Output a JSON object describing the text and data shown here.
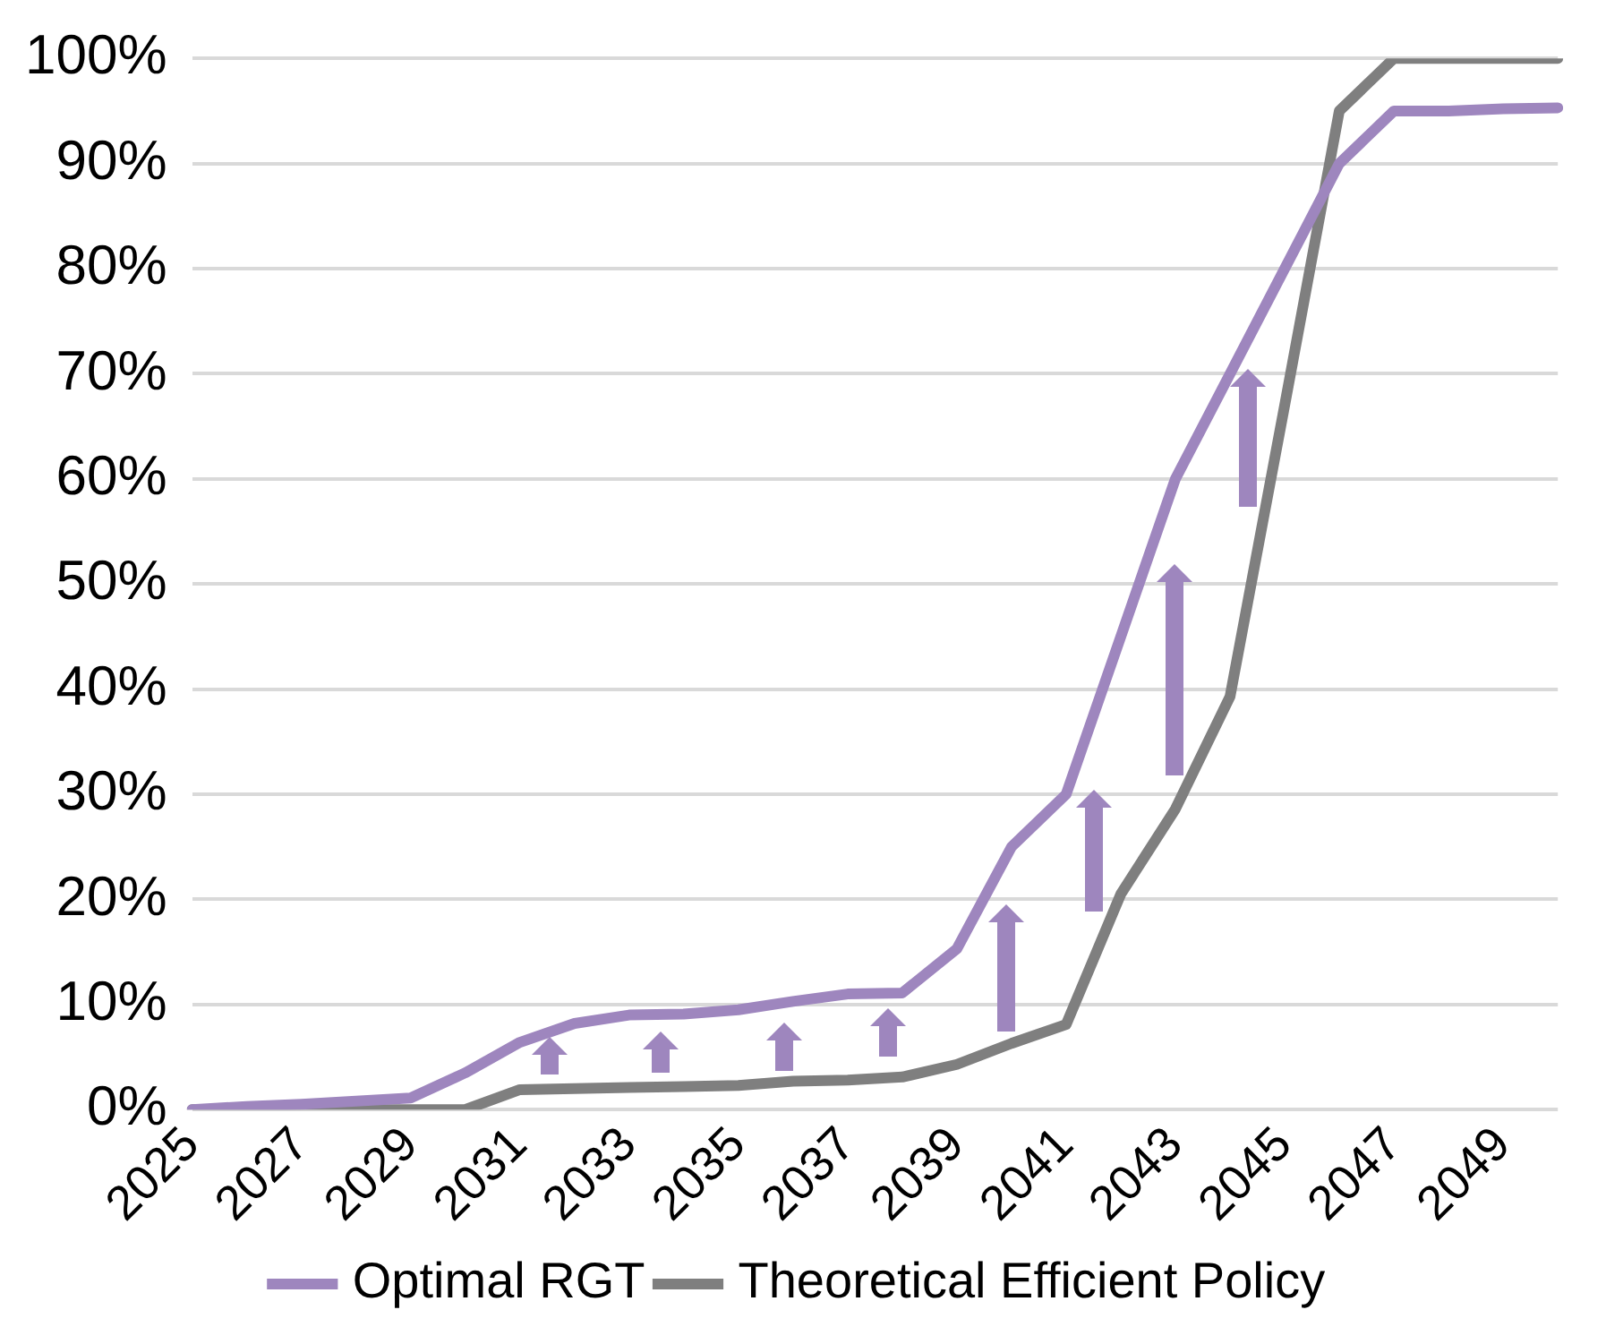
{
  "chart_data": {
    "type": "line",
    "categories": [
      "2025",
      null,
      "2027",
      null,
      "2029",
      null,
      "2031",
      null,
      "2033",
      null,
      "2035",
      null,
      "2037",
      null,
      "2039",
      null,
      "2041",
      null,
      "2043",
      null,
      "2045",
      null,
      "2047",
      null,
      "2049",
      null
    ],
    "series": [
      {
        "name": "Optimal RGT",
        "color": "#9e86be",
        "values": [
          0,
          0.3,
          0.5,
          0.8,
          1.1,
          3.5,
          6.4,
          8.2,
          9,
          9.1,
          9.5,
          10.3,
          11,
          11.1,
          15.3,
          25,
          30,
          45,
          60,
          70,
          80,
          90,
          95,
          95,
          95.2,
          95.3
        ]
      },
      {
        "name": "Theoretical Efficient Policy",
        "color": "#7f7f7f",
        "values": [
          0,
          0,
          0,
          0,
          0,
          0,
          1.9,
          2,
          2.1,
          2.2,
          2.3,
          2.7,
          2.8,
          3.1,
          4.3,
          6.3,
          8.1,
          20.5,
          28.6,
          39.3,
          67,
          95,
          100,
          100,
          100,
          100
        ]
      }
    ],
    "ylim": [
      0,
      100
    ],
    "yticks": [
      {
        "value": 0,
        "label": "0%"
      },
      {
        "value": 10,
        "label": "10%"
      },
      {
        "value": 20,
        "label": "20%"
      },
      {
        "value": 30,
        "label": "30%"
      },
      {
        "value": 40,
        "label": "40%"
      },
      {
        "value": 50,
        "label": "50%"
      },
      {
        "value": 60,
        "label": "60%"
      },
      {
        "value": 70,
        "label": "70%"
      },
      {
        "value": 80,
        "label": "80%"
      },
      {
        "value": 90,
        "label": "90%"
      },
      {
        "value": 100,
        "label": "100%"
      }
    ],
    "grid": "y",
    "legend": "bottom",
    "marker": "none",
    "line_style": "solid"
  }
}
